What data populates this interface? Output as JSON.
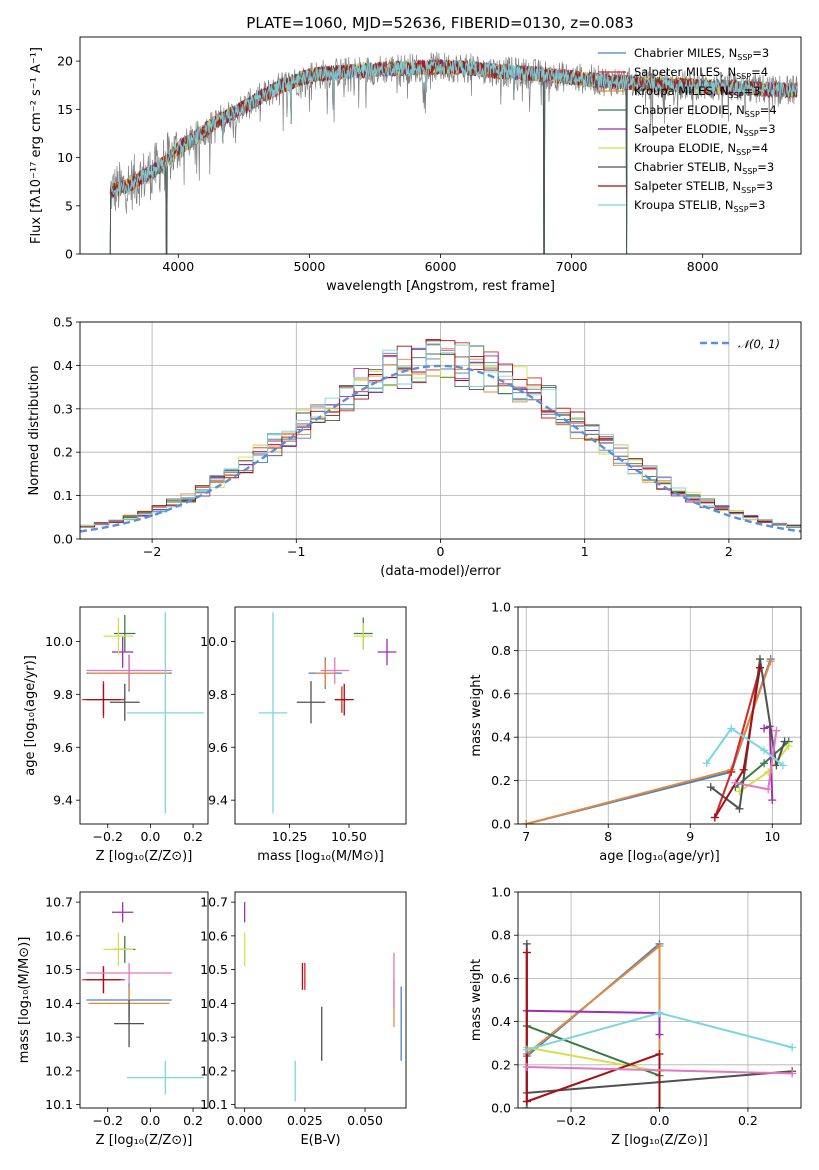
{
  "chart_data": [
    {
      "type": "line",
      "panel": "spectrum",
      "title": "PLATE=1060, MJD=52636, FIBERID=0130, z=0.083",
      "xlabel": "wavelength [Angstrom, rest frame]",
      "ylabel": "Flux [fλ10⁻¹⁷ erg cm⁻² s⁻¹ A⁻¹]",
      "xlim": [
        3250,
        8750
      ],
      "ylim": [
        0,
        22.5
      ],
      "xticks": [
        4000,
        5000,
        6000,
        7000,
        8000
      ],
      "yticks": [
        0,
        5,
        10,
        15,
        20
      ],
      "x_range": [
        3480,
        8720
      ],
      "continuum": {
        "x": [
          3480,
          3600,
          3700,
          3800,
          3900,
          4000,
          4100,
          4200,
          4300,
          4400,
          4500,
          4600,
          4700,
          4800,
          4900,
          5000,
          5200,
          5400,
          5600,
          5800,
          6000,
          6200,
          6400,
          6600,
          6800,
          7000,
          7200,
          7400,
          7600,
          7800,
          8000,
          8300,
          8600,
          8720
        ],
        "y": [
          6.5,
          7.0,
          7.8,
          8.5,
          9.5,
          11.0,
          11.8,
          12.8,
          13.8,
          14.5,
          15.2,
          16.0,
          16.8,
          17.5,
          18.0,
          18.5,
          18.8,
          19.0,
          19.2,
          19.3,
          19.4,
          19.3,
          19.0,
          18.8,
          18.6,
          18.3,
          18.0,
          17.8,
          17.6,
          17.5,
          17.4,
          17.2,
          17.0,
          17.0
        ]
      },
      "spikes_down": [
        {
          "x": 3480,
          "y": 0
        },
        {
          "x": 3910,
          "y": 0
        },
        {
          "x": 4340,
          "y": 11.5
        },
        {
          "x": 4860,
          "y": 13.5
        },
        {
          "x": 5180,
          "y": 15.0
        },
        {
          "x": 5890,
          "y": 16.8
        },
        {
          "x": 6560,
          "y": 16.0
        },
        {
          "x": 6790,
          "y": 0
        },
        {
          "x": 7420,
          "y": 0
        }
      ],
      "series": [
        {
          "name": "Chabrier MILES, N<sub>SSP</sub>=3",
          "label": "Chabrier MILES, N",
          "sub": "SSP",
          "suffix": "=3",
          "color": "#4a7fc1"
        },
        {
          "name": "Salpeter MILES, N<sub>SSP</sub>=4",
          "label": "Salpeter MILES, N",
          "sub": "SSP",
          "suffix": "=4",
          "color": "#d62728"
        },
        {
          "name": "Kroupa MILES, N<sub>SSP</sub>=3",
          "label": "Kroupa MILES, N",
          "sub": "SSP",
          "suffix": "=3",
          "color": "#e08a3c"
        },
        {
          "name": "Chabrier ELODIE, N<sub>SSP</sub>=4",
          "label": "Chabrier ELODIE, N",
          "sub": "SSP",
          "suffix": "=4",
          "color": "#3a7a4a"
        },
        {
          "name": "Salpeter ELODIE, N<sub>SSP</sub>=3",
          "label": "Salpeter ELODIE, N",
          "sub": "SSP",
          "suffix": "=3",
          "color": "#9b2fae"
        },
        {
          "name": "Kroupa ELODIE, N<sub>SSP</sub>=4",
          "label": "Kroupa ELODIE, N",
          "sub": "SSP",
          "suffix": "=4",
          "color": "#d4e04a"
        },
        {
          "name": "Chabrier STELIB, N<sub>SSP</sub>=3",
          "label": "Chabrier STELIB, N",
          "sub": "SSP",
          "suffix": "=3",
          "color": "#505050"
        },
        {
          "name": "Salpeter STELIB, N<sub>SSP</sub>=3",
          "label": "Salpeter STELIB, N",
          "sub": "SSP",
          "suffix": "=3",
          "color": "#a50f15"
        },
        {
          "name": "Kroupa STELIB, N<sub>SSP</sub>=3",
          "label": "Kroupa STELIB, N",
          "sub": "SSP",
          "suffix": "=3",
          "color": "#7ad6e0"
        }
      ],
      "data_color": "#808080",
      "legend": "upper right"
    },
    {
      "type": "histogram",
      "panel": "residuals",
      "xlabel": "(data-model)/error",
      "ylabel": "Normed distribution",
      "xlim": [
        -2.5,
        2.5
      ],
      "ylim": [
        0,
        0.5
      ],
      "xticks": [
        -2,
        -1,
        0,
        1,
        2
      ],
      "yticks": [
        0.0,
        0.1,
        0.2,
        0.3,
        0.4,
        0.5
      ],
      "grid": true,
      "bin_width": 0.1,
      "reference": {
        "label": "𝒩(0, 1)",
        "color": "#5b8fd9",
        "mean": 0,
        "sigma": 1
      },
      "legend": "upper right"
    },
    {
      "type": "errorbar",
      "panel": "Z-age",
      "xlabel": "Z [log₁₀(Z/Z⊙)]",
      "ylabel": "age  [log₁₀(age/yr)]",
      "xlim": [
        -0.33,
        0.27
      ],
      "ylim": [
        9.31,
        10.13
      ],
      "xticks": [
        -0.2,
        0.0,
        0.2
      ],
      "yticks": [
        9.4,
        9.6,
        9.8,
        10.0
      ],
      "points": [
        {
          "color": "#4a7fc1",
          "x": -0.1,
          "xerr": 0.2,
          "y": 9.88,
          "yerr": 0.07
        },
        {
          "color": "#d62728",
          "x": -0.22,
          "xerr": 0.1,
          "y": 9.78,
          "yerr": 0.07
        },
        {
          "color": "#e08a3c",
          "x": -0.1,
          "xerr": 0.19,
          "y": 9.88,
          "yerr": 0.06
        },
        {
          "color": "#3a7a4a",
          "x": -0.12,
          "xerr": 0.05,
          "y": 10.03,
          "yerr": 0.07
        },
        {
          "color": "#9b2fae",
          "x": -0.13,
          "xerr": 0.05,
          "y": 9.96,
          "yerr": 0.06
        },
        {
          "color": "#d4e04a",
          "x": -0.15,
          "xerr": 0.07,
          "y": 10.02,
          "yerr": 0.07
        },
        {
          "color": "#505050",
          "x": -0.12,
          "xerr": 0.07,
          "y": 9.77,
          "yerr": 0.07
        },
        {
          "color": "#a50f15",
          "x": -0.22,
          "xerr": 0.08,
          "y": 9.78,
          "yerr": 0.06
        },
        {
          "color": "#e377c2",
          "x": -0.1,
          "xerr": 0.2,
          "y": 9.89,
          "yerr": 0.05
        },
        {
          "color": "#7ad6e0",
          "x": 0.07,
          "xerr": 0.18,
          "y": 9.73,
          "yerr": 0.38
        }
      ]
    },
    {
      "type": "errorbar",
      "panel": "mass-age",
      "xlabel": "mass [log₁₀(M/M⊙)]",
      "ylabel": "",
      "xlim": [
        10.02,
        10.74
      ],
      "ylim": [
        9.31,
        10.13
      ],
      "xticks": [
        10.25,
        10.5
      ],
      "xtick_labels": [
        "10.25",
        "10.50"
      ],
      "yticks": [
        9.4,
        9.6,
        9.8,
        10.0
      ],
      "points": [
        {
          "color": "#4a7fc1",
          "x": 10.4,
          "xerr": 0.07,
          "y": 9.88,
          "yerr": 0.06
        },
        {
          "color": "#d62728",
          "x": 10.47,
          "xerr": 0.03,
          "y": 9.78,
          "yerr": 0.05
        },
        {
          "color": "#e08a3c",
          "x": 10.4,
          "xerr": 0.04,
          "y": 9.88,
          "yerr": 0.05
        },
        {
          "color": "#3a7a4a",
          "x": 10.56,
          "xerr": 0.04,
          "y": 10.03,
          "yerr": 0.06
        },
        {
          "color": "#9b2fae",
          "x": 10.66,
          "xerr": 0.04,
          "y": 9.96,
          "yerr": 0.05
        },
        {
          "color": "#d4e04a",
          "x": 10.56,
          "xerr": 0.04,
          "y": 10.02,
          "yerr": 0.05
        },
        {
          "color": "#505050",
          "x": 10.34,
          "xerr": 0.06,
          "y": 9.77,
          "yerr": 0.08
        },
        {
          "color": "#a50f15",
          "x": 10.48,
          "xerr": 0.04,
          "y": 9.78,
          "yerr": 0.06
        },
        {
          "color": "#e377c2",
          "x": 10.44,
          "xerr": 0.06,
          "y": 9.89,
          "yerr": 0.05
        },
        {
          "color": "#7ad6e0",
          "x": 10.18,
          "xerr": 0.06,
          "y": 9.73,
          "yerr": 0.38
        }
      ]
    },
    {
      "type": "line",
      "panel": "age-weight",
      "xlabel": "age  [log₁₀(age/yr)]",
      "ylabel": "mass weight",
      "xlim": [
        6.9,
        10.35
      ],
      "ylim": [
        0,
        1
      ],
      "xticks": [
        7,
        8,
        9,
        10
      ],
      "yticks": [
        0.0,
        0.2,
        0.4,
        0.6,
        0.8,
        1.0
      ],
      "grid": true,
      "series": [
        {
          "color": "#4a7fc1",
          "x": [
            7.0,
            9.5,
            9.98
          ],
          "y": [
            0.0,
            0.24,
            0.76
          ]
        },
        {
          "color": "#e08a3c",
          "x": [
            7.0,
            9.5,
            9.98
          ],
          "y": [
            0.0,
            0.25,
            0.75
          ]
        },
        {
          "color": "#d62728",
          "x": [
            9.3,
            9.5,
            9.85
          ],
          "y": [
            0.03,
            0.24,
            0.72
          ]
        },
        {
          "color": "#3a7a4a",
          "x": [
            9.55,
            9.9,
            10.2
          ],
          "y": [
            0.17,
            0.28,
            0.38
          ]
        },
        {
          "color": "#9b2fae",
          "x": [
            9.9,
            9.97,
            10.0
          ],
          "y": [
            0.44,
            0.45,
            0.11
          ]
        },
        {
          "color": "#d4e04a",
          "x": [
            9.6,
            9.95,
            10.2
          ],
          "y": [
            0.15,
            0.24,
            0.36
          ]
        },
        {
          "color": "#505050",
          "x": [
            9.25,
            9.6,
            9.85,
            10.05,
            10.15
          ],
          "y": [
            0.17,
            0.07,
            0.76,
            0.27,
            0.38
          ]
        },
        {
          "color": "#a50f15",
          "x": [
            9.3,
            9.65,
            9.85
          ],
          "y": [
            0.03,
            0.25,
            0.72
          ]
        },
        {
          "color": "#e377c2",
          "x": [
            9.55,
            9.95,
            10.05
          ],
          "y": [
            0.19,
            0.16,
            0.43
          ]
        },
        {
          "color": "#7ad6e0",
          "x": [
            9.2,
            9.5,
            9.9,
            10.13
          ],
          "y": [
            0.28,
            0.44,
            0.34,
            0.27
          ]
        }
      ]
    },
    {
      "type": "errorbar",
      "panel": "Z-mass",
      "xlabel": "Z [log₁₀(Z/Z⊙)]",
      "ylabel": "mass [log₁₀(M/M⊙)]",
      "xlim": [
        -0.33,
        0.27
      ],
      "ylim": [
        10.09,
        10.73
      ],
      "xticks": [
        -0.2,
        0.0,
        0.2
      ],
      "yticks": [
        10.1,
        10.2,
        10.3,
        10.4,
        10.5,
        10.6,
        10.7
      ],
      "points": [
        {
          "color": "#4a7fc1",
          "x": -0.1,
          "xerr": 0.2,
          "y": 10.41,
          "yerr": 0.05
        },
        {
          "color": "#d62728",
          "x": -0.22,
          "xerr": 0.1,
          "y": 10.47,
          "yerr": 0.04
        },
        {
          "color": "#e08a3c",
          "x": -0.1,
          "xerr": 0.19,
          "y": 10.4,
          "yerr": 0.05
        },
        {
          "color": "#3a7a4a",
          "x": -0.12,
          "xerr": 0.05,
          "y": 10.56,
          "yerr": 0.04
        },
        {
          "color": "#9b2fae",
          "x": -0.13,
          "xerr": 0.05,
          "y": 10.67,
          "yerr": 0.03
        },
        {
          "color": "#d4e04a",
          "x": -0.15,
          "xerr": 0.07,
          "y": 10.56,
          "yerr": 0.05
        },
        {
          "color": "#505050",
          "x": -0.1,
          "xerr": 0.07,
          "y": 10.34,
          "yerr": 0.07
        },
        {
          "color": "#a50f15",
          "x": -0.22,
          "xerr": 0.08,
          "y": 10.47,
          "yerr": 0.04
        },
        {
          "color": "#e377c2",
          "x": -0.1,
          "xerr": 0.2,
          "y": 10.49,
          "yerr": 0.03
        },
        {
          "color": "#7ad6e0",
          "x": 0.07,
          "xerr": 0.18,
          "y": 10.18,
          "yerr": 0.05
        }
      ]
    },
    {
      "type": "errorbar",
      "panel": "EBV-mass",
      "xlabel": "E(B-V)",
      "ylabel": "",
      "xlim": [
        -0.004,
        0.067
      ],
      "ylim": [
        10.09,
        10.73
      ],
      "xticks": [
        0.0,
        0.025,
        0.05
      ],
      "xtick_labels": [
        "0.000",
        "0.025",
        "0.050"
      ],
      "yticks": [
        10.1,
        10.2,
        10.3,
        10.4,
        10.5,
        10.6,
        10.7
      ],
      "points": [
        {
          "color": "#4a7fc1",
          "x": 0.065,
          "xerr": 0,
          "y": 10.34,
          "yerr": 0.11
        },
        {
          "color": "#d62728",
          "x": 0.025,
          "xerr": 0,
          "y": 10.48,
          "yerr": 0.04
        },
        {
          "color": "#e08a3c",
          "x": 0.062,
          "xerr": 0,
          "y": 10.4,
          "yerr": 0.07
        },
        {
          "color": "#9b2fae",
          "x": 0.0,
          "xerr": 0,
          "y": 10.67,
          "yerr": 0.03
        },
        {
          "color": "#d4e04a",
          "x": 0.0,
          "xerr": 0,
          "y": 10.56,
          "yerr": 0.05
        },
        {
          "color": "#505050",
          "x": 0.032,
          "xerr": 0,
          "y": 10.31,
          "yerr": 0.08
        },
        {
          "color": "#a50f15",
          "x": 0.024,
          "xerr": 0,
          "y": 10.48,
          "yerr": 0.04
        },
        {
          "color": "#e377c2",
          "x": 0.062,
          "xerr": 0,
          "y": 10.47,
          "yerr": 0.08
        },
        {
          "color": "#7ad6e0",
          "x": 0.021,
          "xerr": 0,
          "y": 10.17,
          "yerr": 0.06
        }
      ]
    },
    {
      "type": "line",
      "panel": "Z-weight",
      "xlabel": "Z [log₁₀(Z/Z⊙)]",
      "ylabel": "mass weight",
      "xlim": [
        -0.32,
        0.32
      ],
      "ylim": [
        0,
        1
      ],
      "xticks": [
        -0.2,
        0.0,
        0.2
      ],
      "yticks": [
        0.0,
        0.2,
        0.4,
        0.6,
        0.8,
        1.0
      ],
      "grid": true,
      "series": [
        {
          "color": "#4a7fc1",
          "x": [
            -0.3,
            -0.3,
            0.0,
            0.0
          ],
          "y": [
            0.0,
            0.24,
            0.76,
            0.0
          ]
        },
        {
          "color": "#e08a3c",
          "x": [
            -0.3,
            0.0,
            0.0
          ],
          "y": [
            0.25,
            0.75,
            0.0
          ]
        },
        {
          "color": "#d62728",
          "x": [
            -0.3,
            -0.3
          ],
          "y": [
            0.03,
            0.72
          ]
        },
        {
          "color": "#3a7a4a",
          "x": [
            -0.3,
            0.0,
            0.0
          ],
          "y": [
            0.38,
            0.15,
            0.0
          ]
        },
        {
          "color": "#9b2fae",
          "x": [
            -0.3,
            0.0,
            0.0
          ],
          "y": [
            0.45,
            0.44,
            0.34
          ]
        },
        {
          "color": "#d4e04a",
          "x": [
            -0.3,
            0.0,
            0.0
          ],
          "y": [
            0.28,
            0.17,
            0.0
          ]
        },
        {
          "color": "#505050",
          "x": [
            -0.3,
            -0.3,
            0.0,
            0.3
          ],
          "y": [
            0.76,
            0.07,
            0.12,
            0.17
          ]
        },
        {
          "color": "#a50f15",
          "x": [
            -0.3,
            -0.3,
            0.0,
            0.0
          ],
          "y": [
            0.72,
            0.03,
            0.25,
            0.0
          ]
        },
        {
          "color": "#e377c2",
          "x": [
            -0.3,
            0.3
          ],
          "y": [
            0.19,
            0.16
          ]
        },
        {
          "color": "#7ad6e0",
          "x": [
            -0.3,
            0.0,
            0.3
          ],
          "y": [
            0.27,
            0.44,
            0.28
          ]
        }
      ]
    }
  ]
}
